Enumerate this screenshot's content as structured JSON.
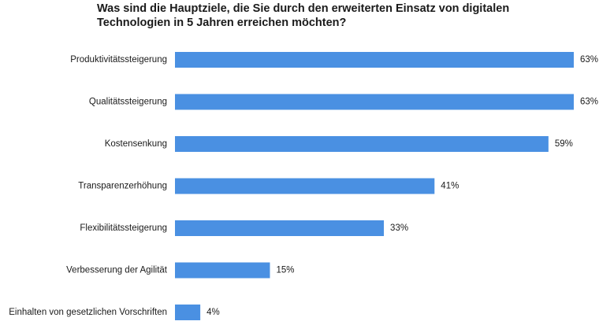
{
  "chart_data": {
    "type": "bar",
    "orientation": "horizontal",
    "title_lines": [
      "Was sind die Hauptziele, die Sie durch den erweiterten Einsatz von digitalen",
      "Technologien in 5 Jahren erreichen möchten?"
    ],
    "categories": [
      "Produktivitätssteigerung",
      "Qualitätssteigerung",
      "Kostensenkung",
      "Transparenzerhöhung",
      "Flexibilitätssteigerung",
      "Verbesserung der Agilität",
      "Einhalten von gesetzlichen Vorschriften"
    ],
    "values": [
      63,
      63,
      59,
      41,
      33,
      15,
      4
    ],
    "value_labels": [
      "63%",
      "63%",
      "59%",
      "41%",
      "33%",
      "15%",
      "4%"
    ],
    "unit": "%",
    "xlim": [
      0,
      63
    ],
    "grid": false,
    "legend": "none",
    "bar_color": "#4a90e2"
  }
}
